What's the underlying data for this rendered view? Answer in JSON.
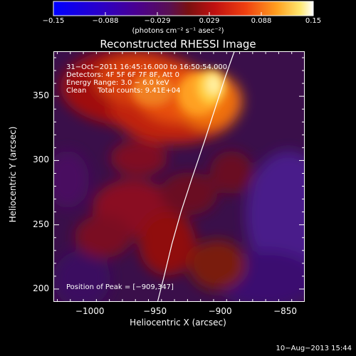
{
  "colorbar": {
    "ticks": [
      "−0.15",
      "−0.088",
      "−0.029",
      "0.029",
      "0.088",
      "0.15"
    ],
    "units": "(photons cm⁻² s⁻¹ asec⁻²)",
    "range": [
      -0.15,
      0.15
    ]
  },
  "chart_data": {
    "type": "heatmap",
    "title": "Reconstructed RHESSI Image",
    "xlabel": "Heliocentric X (arcsec)",
    "ylabel": "Heliocentric Y (arcsec)",
    "xlim": [
      -1028,
      -835
    ],
    "ylim": [
      190,
      385
    ],
    "x_ticks": [
      -1000,
      -950,
      -900,
      -850
    ],
    "y_ticks": [
      200,
      250,
      300,
      350
    ],
    "x_tick_labels": [
      "−1000",
      "−950",
      "−900",
      "−850"
    ],
    "y_tick_labels": [
      "200",
      "250",
      "300",
      "350"
    ],
    "info": [
      "31−Oct−2011 16:45:16.000 to 16:50:54.000",
      "Detectors: 4F 5F 6F 7F 8F, Att 0",
      "Energy Range: 3.0 − 6.0 keV",
      "Clean     Total counts: 9.41E+04"
    ],
    "peak_label": "Position of Peak = [−909,347]",
    "peak": [
      -909,
      347
    ],
    "limb_curve": [
      [
        -948,
        190
      ],
      [
        -943,
        210
      ],
      [
        -937,
        235
      ],
      [
        -930,
        260
      ],
      [
        -922,
        285
      ],
      [
        -912,
        315
      ],
      [
        -904,
        340
      ],
      [
        -896,
        365
      ],
      [
        -889,
        385
      ]
    ]
  },
  "footer": {
    "timestamp": "10−Aug−2013 15:44"
  }
}
